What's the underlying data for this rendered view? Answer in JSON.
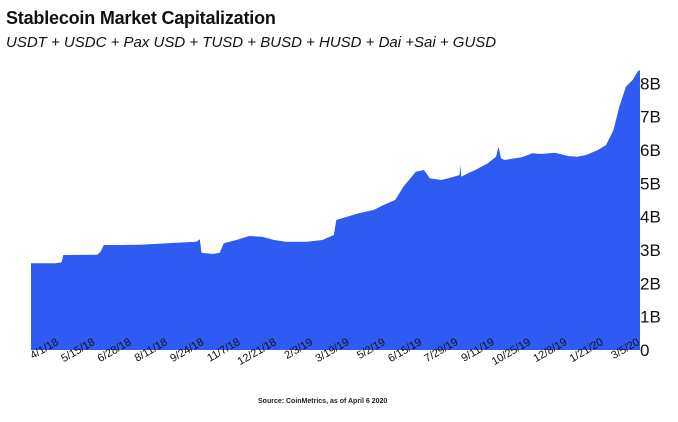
{
  "title": "Stablecoin Market Capitalization",
  "subtitle": "USDT + USDC + Pax USD + TUSD + BUSD + HUSD + Dai +Sai + GUSD",
  "source": "Source: CoinMetrics, as of April 6 2020",
  "colors": {
    "area": "#2f5bf2",
    "background": "#ffffff"
  },
  "chart_data": {
    "type": "area",
    "title": "Stablecoin Market Capitalization",
    "subtitle": "USDT + USDC + Pax USD + TUSD + BUSD + HUSD + Dai +Sai + GUSD",
    "xlabel": "",
    "ylabel": "",
    "y_unit": "B",
    "ylim": [
      0,
      8.4
    ],
    "y_ticks": [
      0,
      1,
      2,
      3,
      4,
      5,
      6,
      7,
      8
    ],
    "y_tick_labels": [
      "0",
      "1B",
      "2B",
      "3B",
      "4B",
      "5B",
      "6B",
      "7B",
      "8B"
    ],
    "x_tick_labels": [
      "4/1/18",
      "5/15/18",
      "6/28/18",
      "8/11/18",
      "9/24/18",
      "11/7/18",
      "12/21/18",
      "2/3/19",
      "3/19/19",
      "5/2/19",
      "6/15/19",
      "7/29/19",
      "9/11/19",
      "10/25/19",
      "12/8/19",
      "1/21/20",
      "3/5/20"
    ],
    "x_range": [
      "2018-04-01",
      "2020-04-06"
    ],
    "grid": false,
    "legend": "none",
    "series": [
      {
        "values": [
          [
            "2018-04-01",
            2.6
          ],
          [
            "2018-05-01",
            2.6
          ],
          [
            "2018-05-08",
            2.63
          ],
          [
            "2018-05-10",
            2.85
          ],
          [
            "2018-06-20",
            2.86
          ],
          [
            "2018-06-24",
            2.95
          ],
          [
            "2018-06-28",
            3.15
          ],
          [
            "2018-07-20",
            3.15
          ],
          [
            "2018-08-11",
            3.16
          ],
          [
            "2018-09-24",
            3.22
          ],
          [
            "2018-10-18",
            3.25
          ],
          [
            "2018-10-22",
            3.32
          ],
          [
            "2018-10-24",
            2.92
          ],
          [
            "2018-11-07",
            2.88
          ],
          [
            "2018-11-15",
            2.92
          ],
          [
            "2018-11-20",
            3.2
          ],
          [
            "2018-12-05",
            3.3
          ],
          [
            "2018-12-21",
            3.42
          ],
          [
            "2019-01-05",
            3.4
          ],
          [
            "2019-01-20",
            3.3
          ],
          [
            "2019-02-03",
            3.25
          ],
          [
            "2019-03-01",
            3.25
          ],
          [
            "2019-03-19",
            3.3
          ],
          [
            "2019-04-02",
            3.45
          ],
          [
            "2019-04-05",
            3.9
          ],
          [
            "2019-04-25",
            4.05
          ],
          [
            "2019-05-02",
            4.1
          ],
          [
            "2019-05-20",
            4.2
          ],
          [
            "2019-06-01",
            4.35
          ],
          [
            "2019-06-15",
            4.5
          ],
          [
            "2019-06-25",
            4.9
          ],
          [
            "2019-07-10",
            5.35
          ],
          [
            "2019-07-20",
            5.4
          ],
          [
            "2019-07-27",
            5.15
          ],
          [
            "2019-08-10",
            5.1
          ],
          [
            "2019-08-25",
            5.2
          ],
          [
            "2019-09-01",
            5.25
          ],
          [
            "2019-09-02",
            5.55
          ],
          [
            "2019-09-03",
            5.2
          ],
          [
            "2019-09-11",
            5.3
          ],
          [
            "2019-09-20",
            5.4
          ],
          [
            "2019-10-05",
            5.6
          ],
          [
            "2019-10-15",
            5.8
          ],
          [
            "2019-10-18",
            6.1
          ],
          [
            "2019-10-21",
            5.75
          ],
          [
            "2019-10-25",
            5.7
          ],
          [
            "2019-11-15",
            5.78
          ],
          [
            "2019-11-28",
            5.9
          ],
          [
            "2019-12-08",
            5.88
          ],
          [
            "2019-12-25",
            5.92
          ],
          [
            "2020-01-10",
            5.82
          ],
          [
            "2020-01-21",
            5.8
          ],
          [
            "2020-02-01",
            5.85
          ],
          [
            "2020-02-15",
            6.0
          ],
          [
            "2020-02-25",
            6.15
          ],
          [
            "2020-03-05",
            6.6
          ],
          [
            "2020-03-12",
            7.3
          ],
          [
            "2020-03-20",
            7.9
          ],
          [
            "2020-03-28",
            8.1
          ],
          [
            "2020-04-03",
            8.35
          ],
          [
            "2020-04-06",
            8.4
          ]
        ]
      }
    ]
  }
}
